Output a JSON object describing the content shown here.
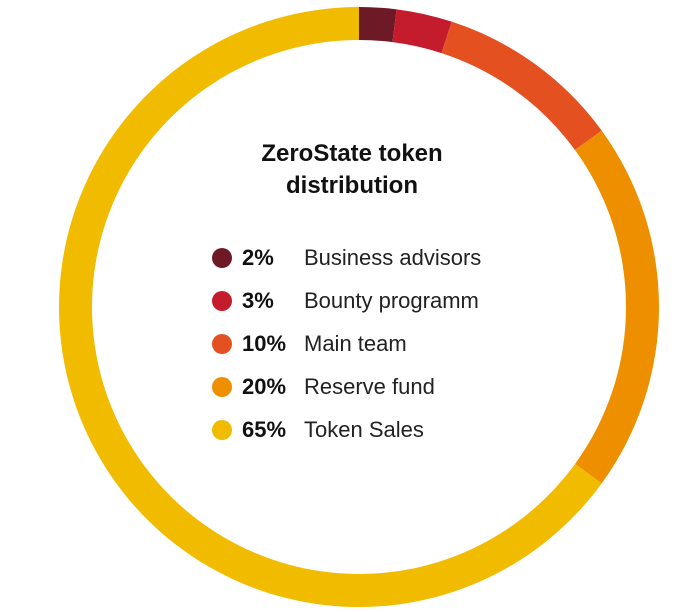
{
  "chart_data": {
    "type": "pie",
    "title": "ZeroState token distribution",
    "categories": [
      "Business advisors",
      "Bounty programm",
      "Main team",
      "Reserve fund",
      "Token Sales"
    ],
    "values": [
      2,
      3,
      10,
      20,
      65
    ],
    "value_labels": [
      "2%",
      "3%",
      "10%",
      "20%",
      "65%"
    ],
    "colors": [
      "#6e1a26",
      "#c51c2d",
      "#e4501f",
      "#ee8f00",
      "#f1bb00"
    ],
    "style": "donut",
    "legend_placement": "center"
  }
}
